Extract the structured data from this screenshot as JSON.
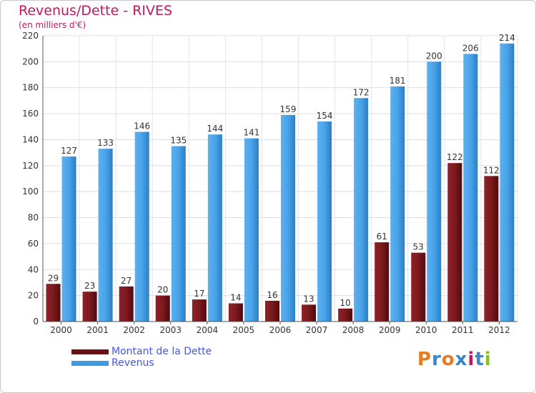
{
  "header": {
    "title": "Revenus/Dette - RIVES",
    "subtitle": "(en milliers d'€)"
  },
  "chart_data": {
    "type": "bar",
    "title": "Revenus/Dette - RIVES",
    "subtitle": "(en milliers d'€)",
    "categories": [
      "2000",
      "2001",
      "2002",
      "2003",
      "2004",
      "2005",
      "2006",
      "2007",
      "2008",
      "2009",
      "2010",
      "2011",
      "2012"
    ],
    "series": [
      {
        "name": "Montant de la Dette",
        "values": [
          29,
          23,
          27,
          20,
          17,
          14,
          16,
          13,
          10,
          61,
          53,
          122,
          112
        ],
        "color": "#7a1a1e"
      },
      {
        "name": "Revenus",
        "values": [
          127,
          133,
          146,
          135,
          144,
          141,
          159,
          154,
          172,
          181,
          200,
          206,
          214
        ],
        "color": "#4aa3e8"
      }
    ],
    "ylim": [
      0,
      220
    ],
    "yticks": [
      0,
      20,
      40,
      60,
      80,
      100,
      120,
      140,
      160,
      180,
      200,
      220
    ],
    "grid": true,
    "legend_position": "bottom-left",
    "xlabel": "",
    "ylabel": ""
  },
  "legend": {
    "items": [
      {
        "label": "Montant de la Dette",
        "color": "#6b0f14"
      },
      {
        "label": "Revenus",
        "color": "#3d9be3"
      }
    ]
  },
  "logo": {
    "text": "Proxiti",
    "letter_colors": [
      "#e8791e",
      "#3a86c8",
      "#e8791e",
      "#3a86c8",
      "#c2185b",
      "#3a86c8",
      "#8cbf26"
    ]
  }
}
